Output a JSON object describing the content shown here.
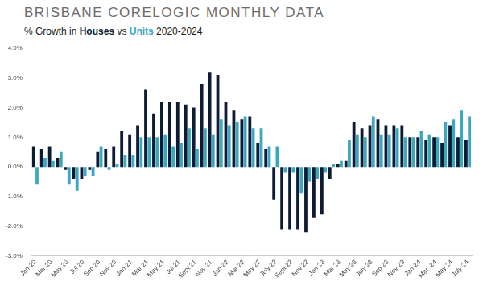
{
  "chart_data": {
    "type": "bar",
    "title": "BRISBANE CORELOGIC MONTHLY DATA",
    "subtitle": "% Growth in Houses vs Units 2020-2024",
    "categories": [
      "Jan-20",
      null,
      "Mar-20",
      null,
      "May 20",
      null,
      "Jul 20",
      null,
      "Sep 20",
      null,
      "Nov 20",
      null,
      "Jan-21",
      null,
      "Mar 21",
      null,
      "May 21",
      null,
      "Jul 21",
      null,
      "Sept 21",
      null,
      "Nov-21",
      null,
      "Jan-22",
      null,
      "Mar 22",
      null,
      "May 22",
      null,
      "July 22",
      null,
      "Sept 22",
      null,
      "Nov 22",
      null,
      "Jan 23",
      null,
      "Mar 23",
      null,
      "May 23",
      null,
      "July 23",
      null,
      "Sep 23",
      null,
      "Nov-23",
      null,
      "Jan-24",
      null,
      "Mar -24",
      null,
      "May 24",
      null,
      "July-24"
    ],
    "series": [
      {
        "name": "Houses",
        "color": "#0d1b33",
        "values": [
          0.7,
          0.6,
          0.7,
          0.3,
          -0.1,
          -0.4,
          -0.4,
          -0.1,
          0.5,
          0.6,
          0.7,
          1.2,
          1.1,
          1.4,
          2.6,
          1.8,
          2.2,
          2.2,
          2.2,
          2.1,
          2.0,
          2.8,
          3.2,
          3.1,
          2.2,
          1.9,
          1.6,
          1.7,
          0.8,
          0.6,
          -1.1,
          -2.1,
          -2.1,
          -2.1,
          -2.2,
          -1.7,
          -1.6,
          -0.4,
          0.1,
          0.2,
          1.5,
          1.3,
          1.4,
          1.6,
          1.4,
          1.4,
          1.4,
          1.0,
          1.0,
          0.9,
          1.0,
          0.8,
          1.4,
          1.0,
          0.9
        ]
      },
      {
        "name": "Units",
        "color": "#3aa7c3",
        "values": [
          -0.6,
          0.3,
          0.2,
          0.5,
          -0.6,
          -0.8,
          -0.3,
          -0.3,
          0.7,
          -0.1,
          0.1,
          0.4,
          0.4,
          1.0,
          1.0,
          1.0,
          1.1,
          0.7,
          0.8,
          1.3,
          0.6,
          1.3,
          1.1,
          1.6,
          1.4,
          1.5,
          1.7,
          1.3,
          1.3,
          0.7,
          0.7,
          -0.2,
          -0.2,
          -0.9,
          -0.5,
          -0.4,
          -0.2,
          0.1,
          0.2,
          0.9,
          1.1,
          1.0,
          1.7,
          1.1,
          1.1,
          1.3,
          1.0,
          1.0,
          1.2,
          1.1,
          1.0,
          1.5,
          1.6,
          1.9,
          1.7
        ]
      }
    ],
    "ylim": [
      -3,
      4
    ],
    "yticks": [
      {
        "value": -3,
        "label": "-3.0%"
      },
      {
        "value": -2,
        "label": "-2.0%"
      },
      {
        "value": -1,
        "label": "-1.0%"
      },
      {
        "value": 0,
        "label": "0.0%"
      },
      {
        "value": 1,
        "label": "1.0%"
      },
      {
        "value": 2,
        "label": "2.0%"
      },
      {
        "value": 3,
        "label": "3.0%"
      },
      {
        "value": 4,
        "label": "4.0%"
      }
    ],
    "grid": false
  }
}
